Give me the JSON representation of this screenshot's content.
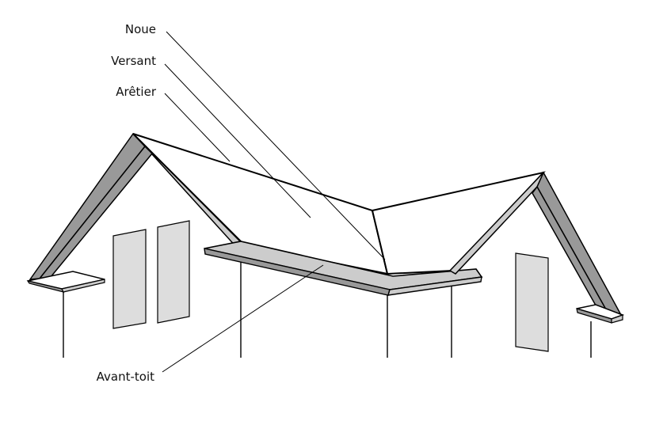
{
  "labels": {
    "noue": "Noue",
    "versant": "Versant",
    "aretier": "Arêtier",
    "avant_toit": "Avant-toit"
  },
  "colors": {
    "outline": "#000000",
    "fascia_dark": "#999999",
    "fascia_light": "#cccccc",
    "window_fill": "#dddddd",
    "roof_surface": "#ffffff"
  }
}
